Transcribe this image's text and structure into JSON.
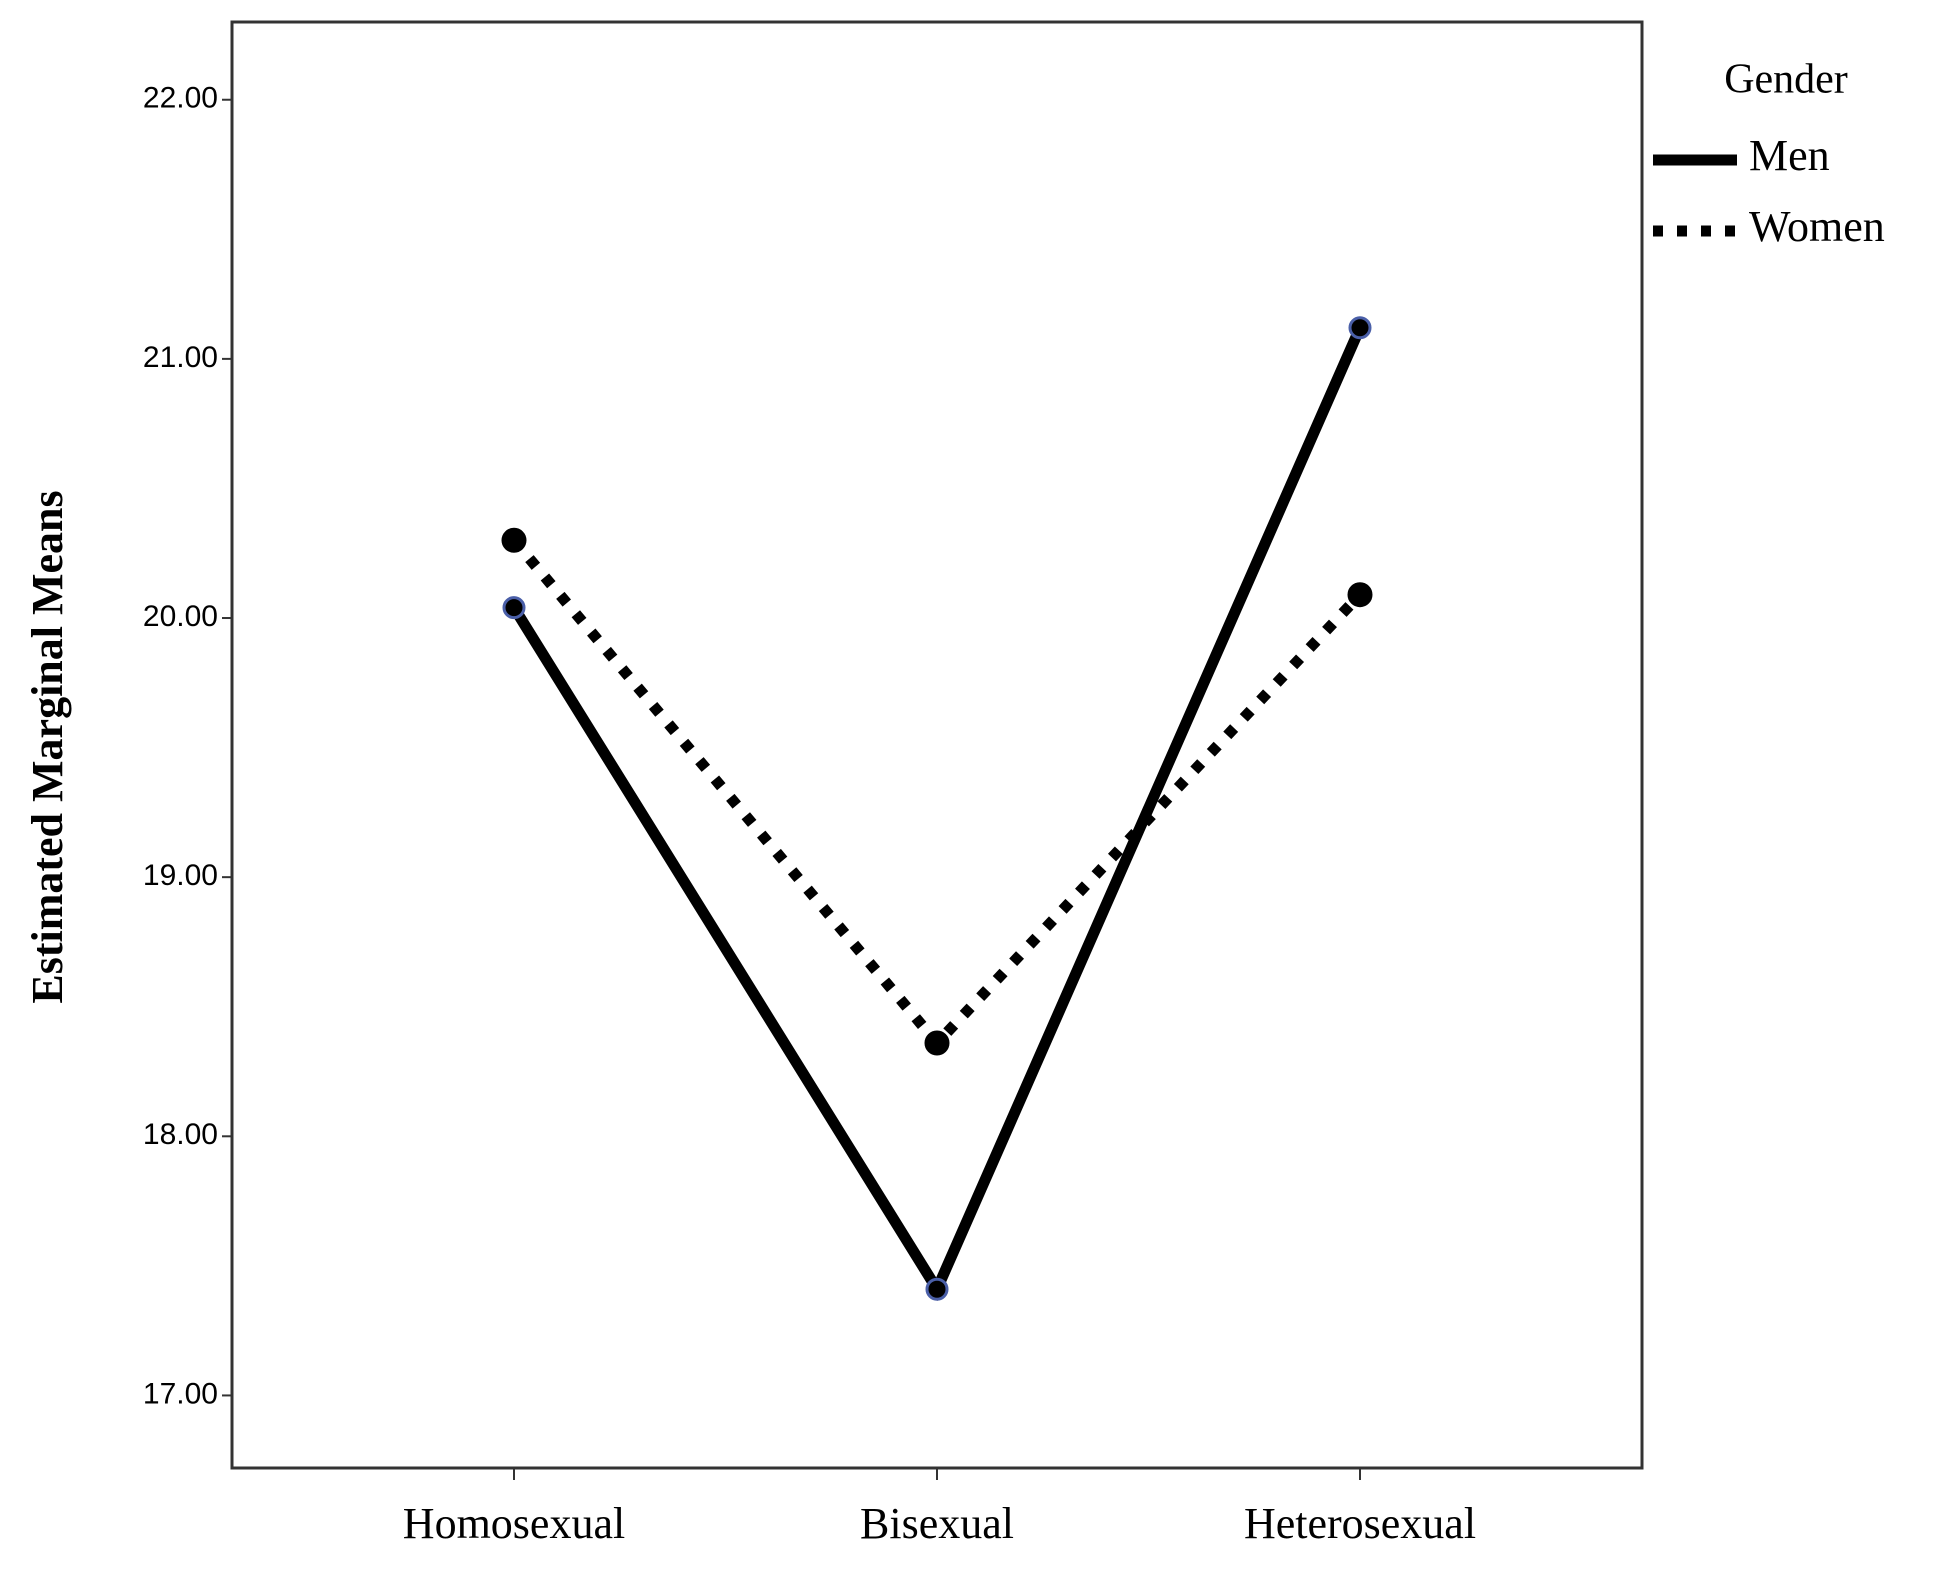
{
  "chart_data": {
    "type": "line",
    "y_label": "Estimated Marginal Means",
    "categories": [
      "Homosexual",
      "Bisexual",
      "Heterosexual"
    ],
    "legend_title": "Gender",
    "legend_position": "outside-right-top",
    "series": [
      {
        "name": "Men",
        "color": "#000000",
        "dash": "solid",
        "values": [
          20.04,
          17.41,
          21.12
        ]
      },
      {
        "name": "Women",
        "color": "#000000",
        "dash": "dotted",
        "values": [
          20.3,
          18.36,
          20.09
        ]
      }
    ],
    "ylim": [
      16.72,
      22.3
    ],
    "yticks": [
      {
        "value": 17,
        "label": "17.00"
      },
      {
        "value": 18,
        "label": "18.00"
      },
      {
        "value": 19,
        "label": "19.00"
      },
      {
        "value": 20,
        "label": "20.00"
      },
      {
        "value": 21,
        "label": "21.00"
      },
      {
        "value": 22,
        "label": "22.00"
      }
    ],
    "grid": false
  }
}
